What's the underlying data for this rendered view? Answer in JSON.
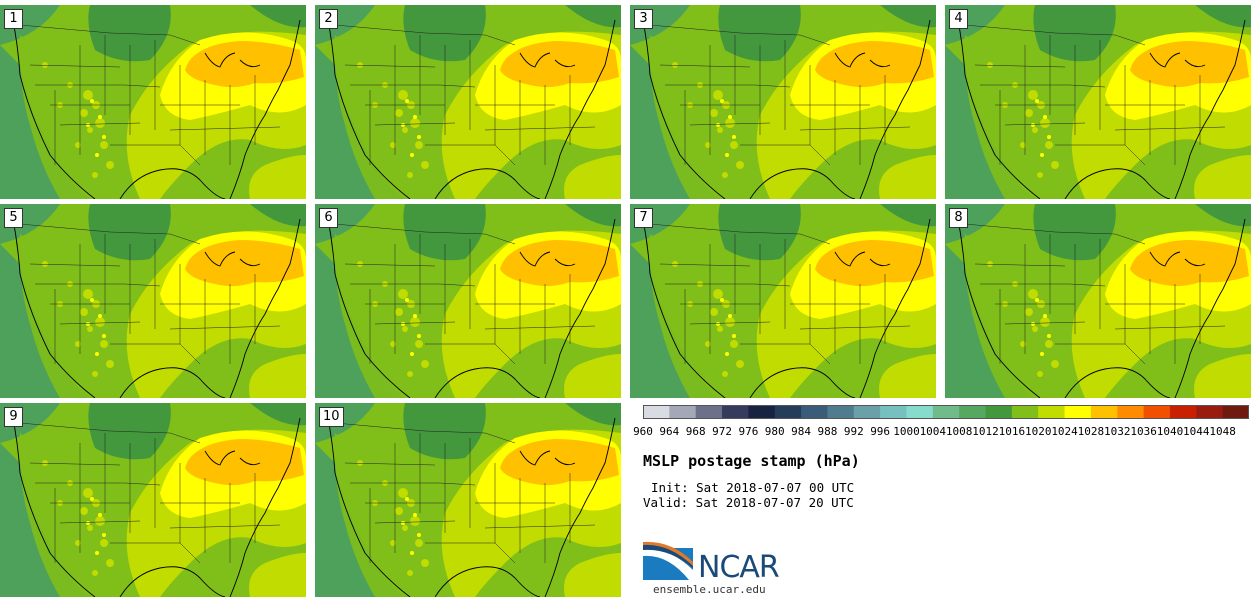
{
  "panels": [
    "1",
    "2",
    "3",
    "4",
    "5",
    "6",
    "7",
    "8",
    "9",
    "10"
  ],
  "colorbar": {
    "levels": [
      "960",
      "964",
      "968",
      "972",
      "976",
      "980",
      "984",
      "988",
      "992",
      "996",
      "1000",
      "1004",
      "1008",
      "1012",
      "1016",
      "1020",
      "1024",
      "1028",
      "1032",
      "1036",
      "1040",
      "1044",
      "1048"
    ],
    "colors": [
      "#d9dbe3",
      "#a3a7b6",
      "#6c7189",
      "#353b5c",
      "#172340",
      "#263d5a",
      "#3b5c78",
      "#4f7c8f",
      "#6aa0a8",
      "#76c0c0",
      "#86dbcc",
      "#6fbc8a",
      "#56a861",
      "#43983d",
      "#80bf1a",
      "#c0dc00",
      "#ffff00",
      "#ffc000",
      "#ff8c00",
      "#f05000",
      "#c82000",
      "#9a1c10",
      "#6e1a10"
    ]
  },
  "map_colors": {
    "ocean": "#4ea15a",
    "dark_green": "#43983d",
    "green": "#80bf1a",
    "yellow_green": "#c0dc00",
    "yellow": "#ffff00",
    "orange": "#ffc000"
  },
  "title": "MSLP postage stamp (hPa)",
  "init": "Init: Sat 2018-07-07 00 UTC",
  "valid": "Valid: Sat 2018-07-07 20 UTC",
  "logo": {
    "name": "NCAR",
    "url": "ensemble.ucar.edu"
  }
}
